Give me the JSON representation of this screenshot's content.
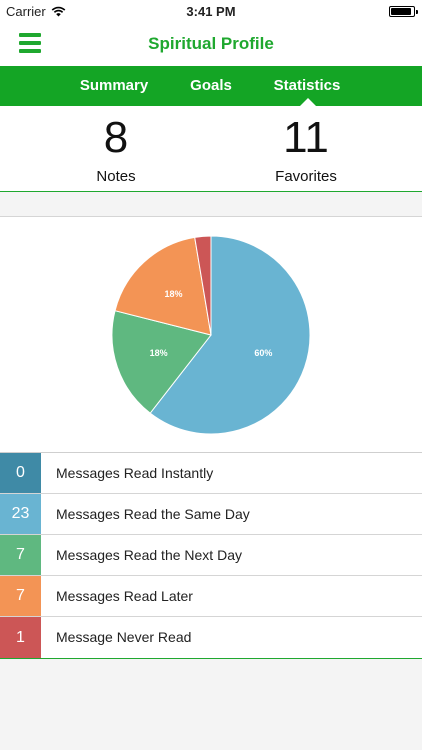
{
  "status_bar": {
    "carrier": "Carrier",
    "time": "3:41 PM",
    "wifi_icon": "wifi-icon",
    "battery_icon": "battery-icon"
  },
  "nav": {
    "title": "Spiritual Profile",
    "menu_icon": "hamburger-menu-icon",
    "accent": "#1fa82f"
  },
  "tabs": [
    {
      "label": "Summary",
      "active": false
    },
    {
      "label": "Goals",
      "active": false
    },
    {
      "label": "Statistics",
      "active": true
    }
  ],
  "counts": [
    {
      "value": "8",
      "label": "Notes"
    },
    {
      "value": "11",
      "label": "Favorites"
    }
  ],
  "chart_data": {
    "type": "pie",
    "title": "",
    "slices": [
      {
        "label": "Messages Read Instantly",
        "value": 0,
        "percent_label": "",
        "color": "#3f8aa6"
      },
      {
        "label": "Messages Read the Same Day",
        "value": 23,
        "percent_label": "60%",
        "color": "#69b4d2"
      },
      {
        "label": "Messages Read the Next Day",
        "value": 7,
        "percent_label": "18%",
        "color": "#5fb880"
      },
      {
        "label": "Messages Read Later",
        "value": 7,
        "percent_label": "18%",
        "color": "#f39455"
      },
      {
        "label": "Message Never Read",
        "value": 1,
        "percent_label": "",
        "color": "#cc5656"
      }
    ]
  },
  "legend": [
    {
      "count": "0",
      "label": "Messages Read Instantly",
      "color": "#3f8aa6"
    },
    {
      "count": "23",
      "label": "Messages Read the Same Day",
      "color": "#69b4d2"
    },
    {
      "count": "7",
      "label": "Messages Read the Next Day",
      "color": "#5fb880"
    },
    {
      "count": "7",
      "label": "Messages Read Later",
      "color": "#f39455"
    },
    {
      "count": "1",
      "label": "Message Never Read",
      "color": "#cc5656"
    }
  ]
}
